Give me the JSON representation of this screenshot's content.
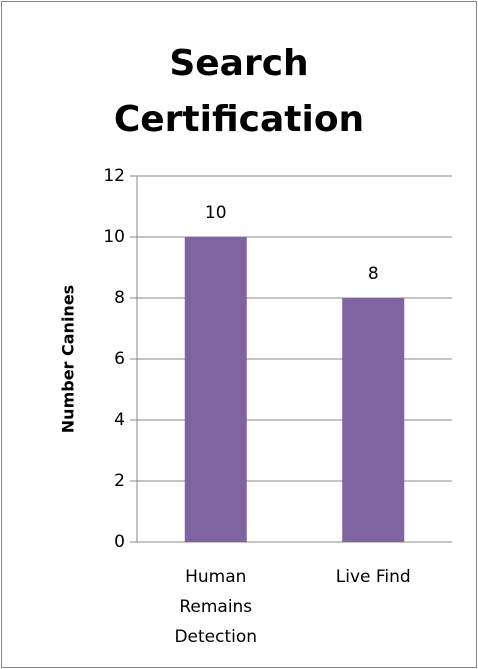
{
  "chart_data": {
    "type": "bar",
    "title": "Search Certification",
    "y_label": "Number Canines",
    "categories": [
      "Human Remains Detection",
      "Live Find"
    ],
    "values": [
      10,
      8
    ],
    "color": "#8064a2",
    "ylim": [
      0,
      12
    ],
    "yticks": [
      0,
      2,
      4,
      6,
      8,
      10,
      12
    ],
    "grid": true
  }
}
